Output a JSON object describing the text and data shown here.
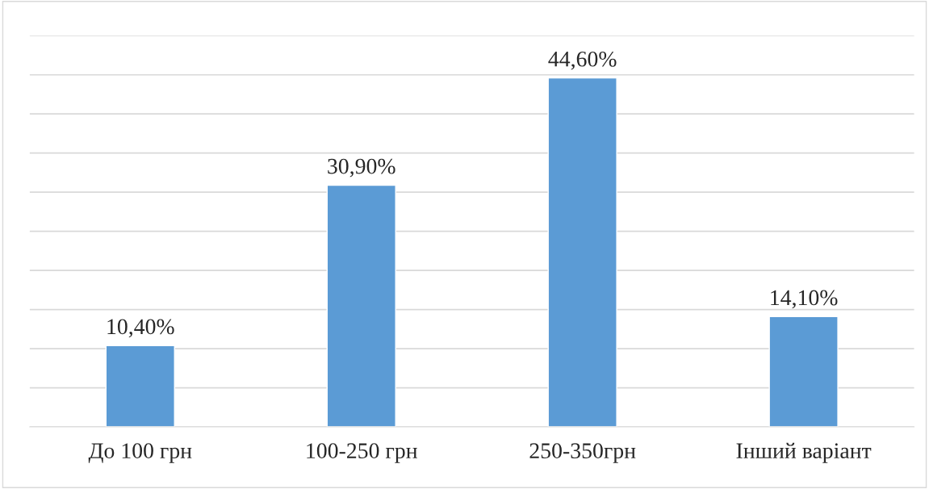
{
  "chart_data": {
    "type": "bar",
    "categories": [
      "До 100 грн",
      "100-250 грн",
      "250-350грн",
      "Інший варіант"
    ],
    "values": [
      10.4,
      30.9,
      44.6,
      14.1
    ],
    "value_labels": [
      "10,40%",
      "30,90%",
      "44,60%",
      "14,10%"
    ],
    "color": "#5b9bd5",
    "ylim": [
      0,
      50
    ],
    "yticks": [
      {
        "value": 0,
        "label": null
      },
      {
        "value": 5,
        "label": null
      },
      {
        "value": 10,
        "label": null
      },
      {
        "value": 15,
        "label": null
      },
      {
        "value": 20,
        "label": null
      },
      {
        "value": 25,
        "label": null
      },
      {
        "value": 30,
        "label": null
      },
      {
        "value": 35,
        "label": null
      },
      {
        "value": 40,
        "label": null
      },
      {
        "value": 45,
        "label": null
      },
      {
        "value": 50,
        "label": null
      }
    ],
    "grid": "y",
    "tick_labels": "x",
    "legend": false
  }
}
